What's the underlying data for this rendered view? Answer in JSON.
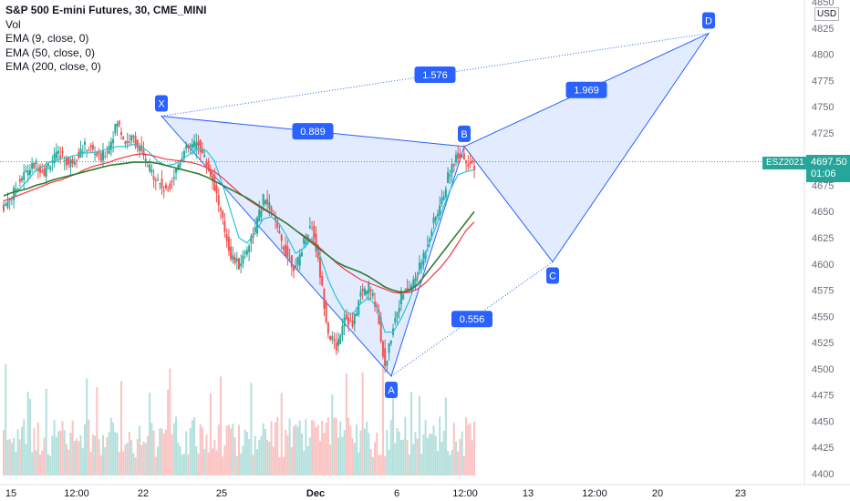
{
  "legend": {
    "title": "S&P 500 E-mini Futures, 30, CME_MINI",
    "lines": [
      "Vol",
      "EMA (9, close, 0)",
      "EMA (50, close, 0)",
      "EMA (200, close, 0)"
    ]
  },
  "currency": "USD",
  "symbol_tag": "ESZ2021",
  "last_price": "4697.50",
  "countdown": "01:06",
  "colors": {
    "up": "#26a69a",
    "down": "#ef5350",
    "ema9": "#26c6da",
    "ema50": "#f23645",
    "ema200": "#2e7d32",
    "pattern": "#2962ff",
    "pattern_fill": "rgba(41,98,255,0.13)"
  },
  "chart_data": {
    "type": "candlestick",
    "yaxis": {
      "ticks": [
        4400,
        4425,
        4450,
        4475,
        4500,
        4525,
        4550,
        4575,
        4600,
        4625,
        4650,
        4675,
        4700,
        4725,
        4750,
        4775,
        4800,
        4825,
        4850
      ],
      "range": [
        4395,
        4855
      ]
    },
    "xaxis": {
      "ticks": [
        "15",
        "12:00",
        "22",
        "25",
        "Dec",
        "6",
        "12:00",
        "13",
        "12:00",
        "20",
        "23"
      ]
    },
    "pattern": {
      "name": "XABCD",
      "points": [
        {
          "label": "X",
          "date": "22",
          "price": 4741
        },
        {
          "label": "A",
          "date": "6",
          "price": 4493
        },
        {
          "label": "B",
          "date": "12:00 (Dec 9)",
          "price": 4712
        },
        {
          "label": "C",
          "date": "Dec 15",
          "price": 4602
        },
        {
          "label": "D",
          "date": "Dec 22",
          "price": 4820
        }
      ],
      "ratios": [
        {
          "label": "0.889",
          "between": "X-B"
        },
        {
          "label": "0.556",
          "between": "A-C"
        },
        {
          "label": "1.969",
          "between": "B-D"
        },
        {
          "label": "1.576",
          "between": "X-D"
        }
      ]
    },
    "series": [
      {
        "name": "ESZ2021",
        "kind": "candles",
        "closes": [
          4655,
          4665,
          4680,
          4690,
          4695,
          4688,
          4700,
          4705,
          4695,
          4703,
          4712,
          4708,
          4700,
          4713,
          4735,
          4716,
          4720,
          4705,
          4690,
          4680,
          4668,
          4685,
          4705,
          4712,
          4715,
          4696,
          4674,
          4640,
          4608,
          4598,
          4616,
          4633,
          4662,
          4652,
          4625,
          4608,
          4595,
          4622,
          4640,
          4590,
          4535,
          4520,
          4552,
          4540,
          4572,
          4578,
          4559,
          4500,
          4542,
          4570,
          4576,
          4590,
          4615,
          4640,
          4660,
          4690,
          4705,
          4700,
          4689
        ]
      },
      {
        "name": "EMA (9, close, 0)",
        "kind": "line",
        "values": [
          4655,
          4662,
          4672,
          4680,
          4690,
          4694,
          4698,
          4700,
          4702,
          4704,
          4706,
          4706,
          4708,
          4710,
          4712,
          4712,
          4714,
          4712,
          4706,
          4698,
          4694,
          4695,
          4700,
          4705,
          4710,
          4708,
          4698,
          4675,
          4650,
          4625,
          4620,
          4630,
          4643,
          4645,
          4638,
          4625,
          4610,
          4615,
          4625,
          4608,
          4585,
          4568,
          4555,
          4552,
          4562,
          4568,
          4559,
          4535,
          4535,
          4548,
          4565,
          4588,
          4610,
          4630,
          4650,
          4670,
          4685,
          4688,
          4690
        ]
      },
      {
        "name": "EMA (50, close, 0)",
        "kind": "line",
        "values": [
          4660,
          4663,
          4666,
          4669,
          4672,
          4675,
          4678,
          4680,
          4683,
          4686,
          4690,
          4693,
          4695,
          4697,
          4700,
          4702,
          4704,
          4705,
          4704,
          4702,
          4700,
          4699,
          4698,
          4697,
          4695,
          4692,
          4688,
          4682,
          4675,
          4668,
          4662,
          4657,
          4652,
          4648,
          4643,
          4638,
          4632,
          4627,
          4622,
          4615,
          4608,
          4601,
          4595,
          4590,
          4585,
          4582,
          4579,
          4576,
          4573,
          4572,
          4573,
          4576,
          4582,
          4590,
          4598,
          4608,
          4620,
          4632,
          4640
        ]
      },
      {
        "name": "EMA (200, close, 0)",
        "kind": "line",
        "values": [
          4665,
          4668,
          4670,
          4672,
          4675,
          4677,
          4680,
          4682,
          4684,
          4686,
          4688,
          4690,
          4692,
          4694,
          4695,
          4696,
          4697,
          4697,
          4697,
          4696,
          4694,
          4692,
          4690,
          4688,
          4686,
          4683,
          4679,
          4675,
          4671,
          4667,
          4663,
          4658,
          4653,
          4648,
          4643,
          4638,
          4632,
          4626,
          4620,
          4614,
          4608,
          4602,
          4598,
          4595,
          4592,
          4588,
          4583,
          4578,
          4575,
          4573,
          4575,
          4580,
          4590,
          4600,
          4610,
          4620,
          4630,
          4640,
          4650
        ]
      }
    ]
  }
}
